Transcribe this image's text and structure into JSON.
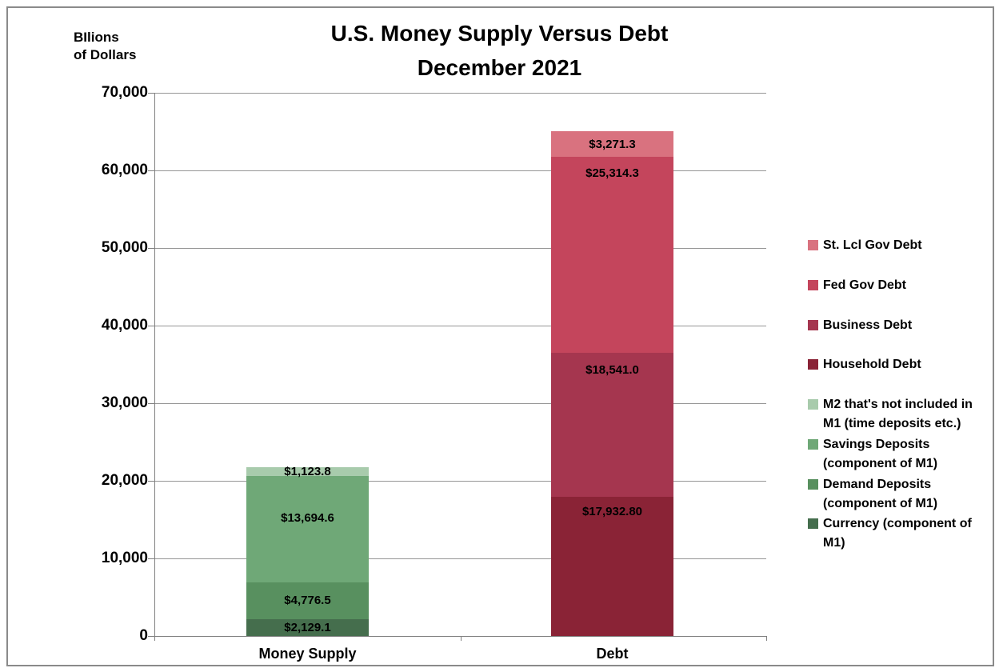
{
  "title": {
    "line1": "U.S. Money Supply Versus Debt",
    "line2": "December 2021"
  },
  "axis_unit": {
    "line1": "BIlions",
    "line2": "of Dollars"
  },
  "chart_data": {
    "type": "bar",
    "stacked": true,
    "title": "U.S. Money Supply Versus Debt",
    "subtitle": "December 2021",
    "ylabel": "BIlions of Dollars",
    "categories": [
      "Money Supply",
      "Debt"
    ],
    "ylim": [
      0,
      70000
    ],
    "ytick_step": 10000,
    "ytick_labels": [
      "0",
      "10,000",
      "20,000",
      "30,000",
      "40,000",
      "50,000",
      "60,000",
      "70,000"
    ],
    "grid": true,
    "legend_position": "right",
    "colors": {
      "grid": "#969696",
      "axis": "#808080"
    },
    "series": [
      {
        "name": "Currency (component of M1)",
        "category": "Money Supply",
        "value": 2129.1,
        "label": "$2,129.1",
        "color": "#456e4d",
        "label_frac": 0.5
      },
      {
        "name": "Demand Deposits (component of M1)",
        "category": "Money Supply",
        "value": 4776.5,
        "label": "$4,776.5",
        "color": "#58905f",
        "label_frac": 0.5
      },
      {
        "name": "Savings Deposits (component of M1)",
        "category": "Money Supply",
        "value": 13694.6,
        "label": "$13,694.6",
        "color": "#6fa877",
        "label_frac": 0.4
      },
      {
        "name": "M2 that's not included in M1 (time deposits etc.)",
        "category": "Money Supply",
        "value": 1123.8,
        "label": "$1,123.8",
        "color": "#a8cbac",
        "label_frac": 0.5
      },
      {
        "name": "Household Debt",
        "category": "Debt",
        "value": 17932.8,
        "label": "$17,932.80",
        "color": "#8a2336",
        "label_frac": 0.11
      },
      {
        "name": "Business Debt",
        "category": "Debt",
        "value": 18541.0,
        "label": "$18,541.0",
        "color": "#a5364f",
        "label_frac": 0.12
      },
      {
        "name": "Fed Gov Debt",
        "category": "Debt",
        "value": 25314.3,
        "label": "$25,314.3",
        "color": "#c4455c",
        "label_frac": 0.085
      },
      {
        "name": "St. Lcl Gov Debt",
        "category": "Debt",
        "value": 3271.3,
        "label": "$3,271.3",
        "color": "#d9727f",
        "label_frac": 0.55
      }
    ],
    "legend": [
      {
        "label": "St. Lcl Gov Debt",
        "color": "#d9727f"
      },
      {
        "label": "Fed Gov Debt",
        "color": "#c4455c"
      },
      {
        "label": "Business Debt",
        "color": "#a5364f"
      },
      {
        "label": "Household Debt",
        "color": "#8a2336"
      },
      {
        "label": "M2 that's not included in\nM1 (time deposits etc.)",
        "color": "#a8cbac"
      },
      {
        "label": "Savings Deposits\n(component of M1)",
        "color": "#6fa877"
      },
      {
        "label": "Demand Deposits\n(component of M1)",
        "color": "#58905f"
      },
      {
        "label": "Currency (component of\nM1)",
        "color": "#456e4d"
      }
    ]
  }
}
